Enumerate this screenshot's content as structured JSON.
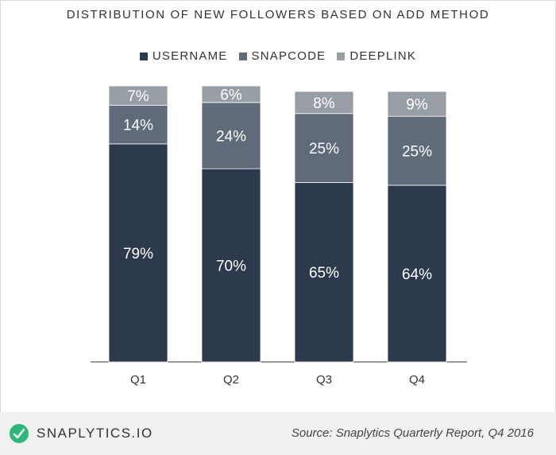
{
  "chart_data": {
    "type": "bar",
    "stacked": true,
    "title": "DISTRIBUTION OF NEW FOLLOWERS BASED ON ADD METHOD",
    "categories": [
      "Q1",
      "Q2",
      "Q3",
      "Q4"
    ],
    "series": [
      {
        "name": "USERNAME",
        "values": [
          79,
          70,
          65,
          64
        ],
        "labels": [
          "79%",
          "70%",
          "65%",
          "64%"
        ],
        "color": "#2d3a4d"
      },
      {
        "name": "SNAPCODE",
        "values": [
          14,
          24,
          25,
          25
        ],
        "labels": [
          "14%",
          "24%",
          "25%",
          "25%"
        ],
        "color": "#5f6b79"
      },
      {
        "name": "DEEPLINK",
        "values": [
          7,
          6,
          8,
          9
        ],
        "labels": [
          "7%",
          "6%",
          "8%",
          "9%"
        ],
        "color": "#979ea6"
      }
    ],
    "ylim": [
      0,
      100
    ],
    "legend_position": "top-center",
    "grid": false
  },
  "footer": {
    "brand": "SNAPLYTICS.IO",
    "source": "Source: Snaplytics Quarterly Report, Q4 2016",
    "logo_icon": "snaplytics-logo-icon",
    "logo_color": "#2fb67a"
  }
}
